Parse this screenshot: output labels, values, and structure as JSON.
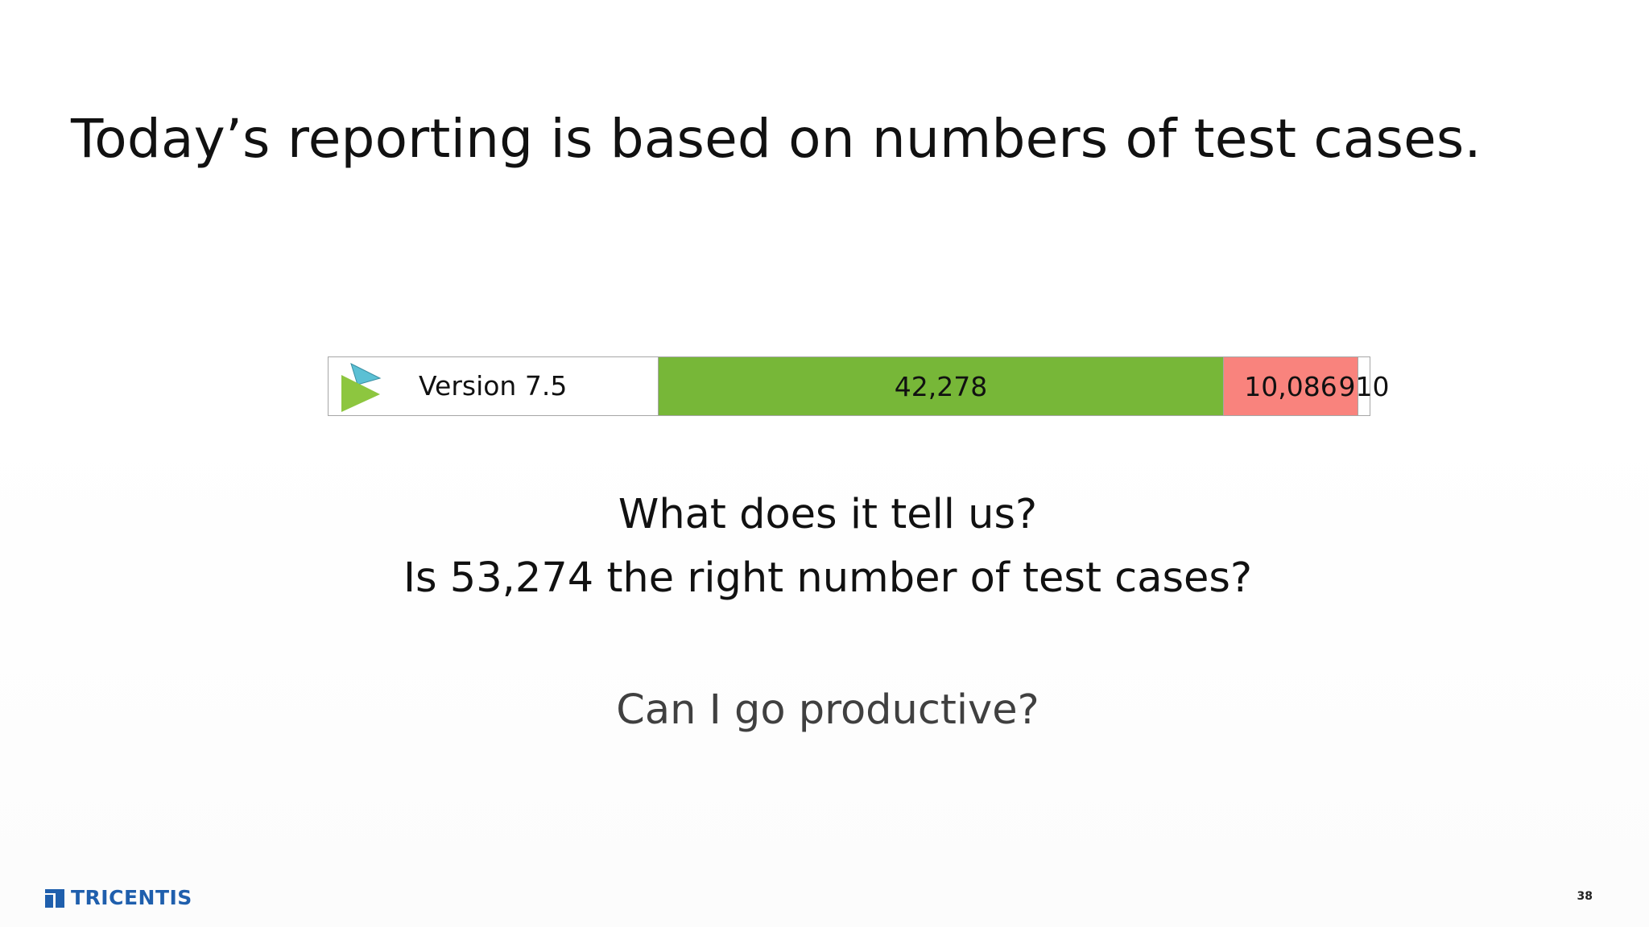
{
  "slide": {
    "title": "Today’s reporting is based on numbers of test cases.",
    "questions": [
      "What does it tell us?",
      "Is 53,274 the right number of test cases?"
    ],
    "closing_question": "Can I go productive?",
    "page_number": "38"
  },
  "brand": {
    "name": "TRICENTIS",
    "color": "#1f5fad"
  },
  "chart_data": {
    "type": "bar",
    "stacked": true,
    "orientation": "horizontal",
    "categories": [
      "Version 7.5"
    ],
    "series": [
      {
        "values": [
          42278
        ],
        "color": "#77b738",
        "label": "42,278"
      },
      {
        "values": [
          10086
        ],
        "color": "#f9837d",
        "label": "10,086"
      },
      {
        "values": [
          910
        ],
        "color": "#ffffff",
        "label": "910"
      }
    ],
    "label_cell_weight": 0.317,
    "total": 53274
  },
  "logo": {
    "icon": "tosca-play-icon",
    "colors": [
      "#5bc0d4",
      "#8dc63f"
    ]
  }
}
